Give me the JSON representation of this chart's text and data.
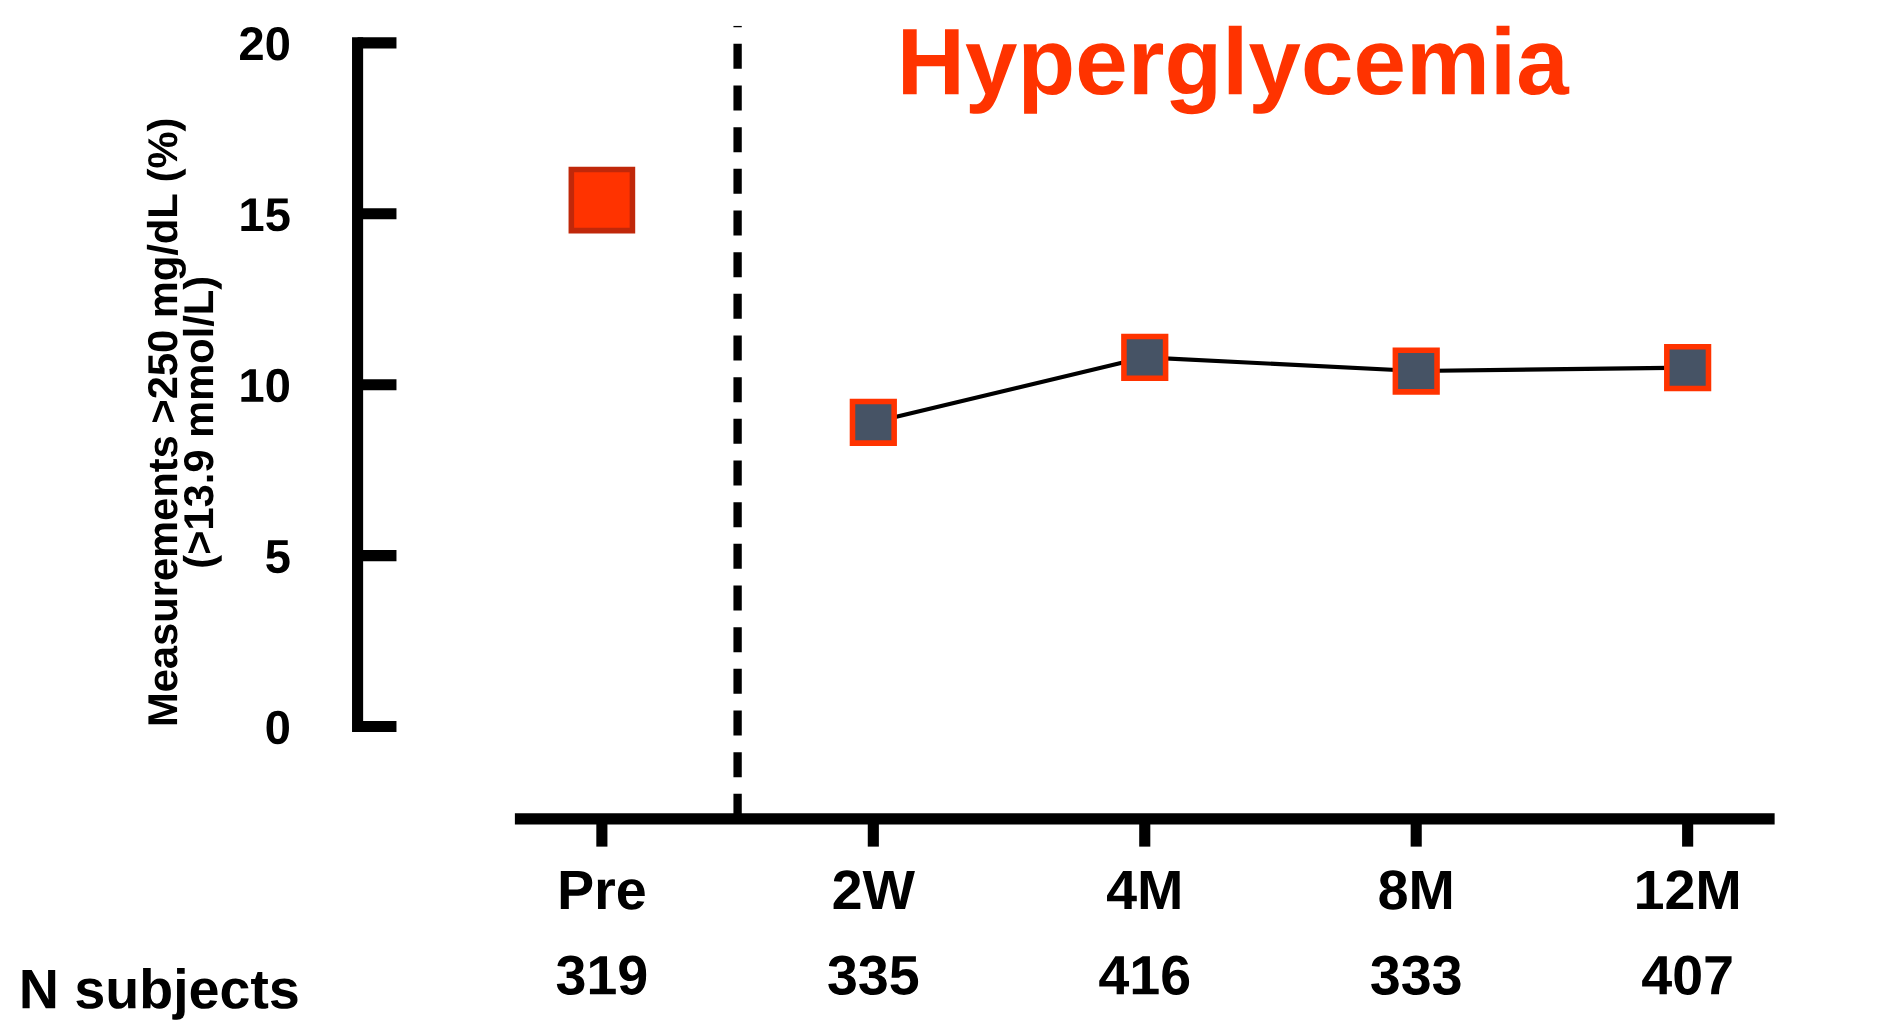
{
  "chart_data": {
    "type": "line",
    "title": "Hyperglycemia",
    "ylabel": "Measurements >250 mg/dL (%)\n(>13.9 mmol/L)",
    "categories": [
      "Pre",
      "2W",
      "4M",
      "8M",
      "12M"
    ],
    "ylim": [
      -2.7,
      20.5
    ],
    "yticks": [
      0,
      5,
      10,
      15,
      20
    ],
    "series": [
      {
        "type": "scatter",
        "x": [
          "Pre"
        ],
        "values": [
          15.4
        ],
        "color": "#ff3300",
        "marker": "square"
      },
      {
        "type": "line",
        "x": [
          "2W",
          "4M",
          "8M",
          "12M"
        ],
        "values": [
          8.9,
          10.8,
          10.4,
          10.5
        ],
        "color": "#465365",
        "marker": "square",
        "line_style": "solid"
      }
    ],
    "annotations": [
      "N subjects",
      "319",
      "335",
      "416",
      "333",
      "407"
    ],
    "grid": false,
    "legend": false
  }
}
